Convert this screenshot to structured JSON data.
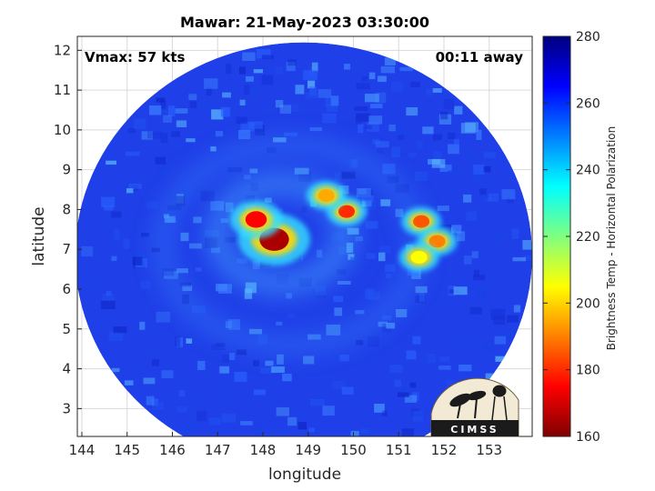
{
  "chart_data": {
    "type": "heatmap",
    "title": "Mawar: 21-May-2023 03:30:00",
    "xlabel": "longitude",
    "ylabel": "latitude",
    "xlim": [
      143.9,
      153.95
    ],
    "ylim": [
      2.3,
      12.35
    ],
    "x_ticks": [
      "144",
      "145",
      "146",
      "147",
      "148",
      "149",
      "150",
      "151",
      "152",
      "153"
    ],
    "y_ticks": [
      "3",
      "4",
      "5",
      "6",
      "7",
      "8",
      "9",
      "10",
      "11",
      "12"
    ],
    "grid": true,
    "annotations": {
      "vmax": "Vmax: 57 kts",
      "time_away": "00:11 away"
    },
    "colorbar": {
      "label": "Brightness Temp - Horizontal Polarization",
      "min": 160,
      "max": 280,
      "ticks": [
        "160",
        "180",
        "200",
        "220",
        "240",
        "260",
        "280"
      ],
      "colormap": "jet"
    },
    "swath": {
      "center_lon": 148.9,
      "center_lat": 6.85,
      "radius_lon": 5.05,
      "radius_lat": 5.35
    },
    "cold_features": [
      {
        "lon": 148.25,
        "lat": 7.25,
        "min_bt": 165
      },
      {
        "lon": 147.85,
        "lat": 7.75,
        "min_bt": 175
      },
      {
        "lon": 149.85,
        "lat": 7.95,
        "min_bt": 180
      },
      {
        "lon": 149.4,
        "lat": 8.35,
        "min_bt": 195
      },
      {
        "lon": 151.5,
        "lat": 7.7,
        "min_bt": 185
      },
      {
        "lon": 151.85,
        "lat": 7.2,
        "min_bt": 190
      },
      {
        "lon": 151.45,
        "lat": 6.8,
        "min_bt": 205
      }
    ],
    "logo_text": "CIMSS"
  }
}
